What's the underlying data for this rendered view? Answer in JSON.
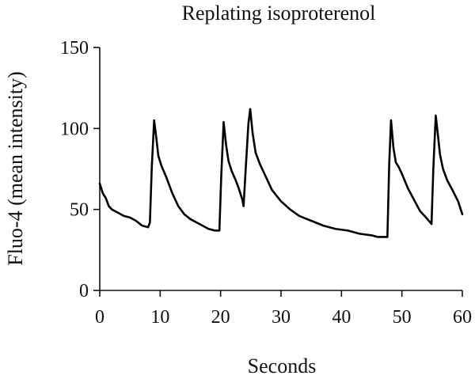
{
  "chart_data": {
    "type": "line",
    "title": "Replating isoproterenol",
    "xlabel": "Seconds",
    "ylabel": "Fluo-4 (mean intensity)",
    "xlim": [
      0,
      60
    ],
    "ylim": [
      0,
      150
    ],
    "x_ticks": [
      0,
      10,
      20,
      30,
      40,
      50,
      60
    ],
    "y_ticks": [
      0,
      50,
      100,
      150
    ],
    "x_tick_labels": [
      "0",
      "10",
      "20",
      "30",
      "40",
      "50",
      "60"
    ],
    "y_tick_labels": [
      "0",
      "50",
      "100",
      "150"
    ],
    "grid": false,
    "series": [
      {
        "x": [
          0,
          0.5,
          1,
          1.5,
          2,
          3,
          4,
          5,
          6,
          7,
          8,
          8.3,
          8.6,
          9.0,
          9.3,
          9.7,
          10.2,
          11,
          12,
          13,
          14,
          15,
          16,
          17,
          18,
          19,
          19.8,
          20.1,
          20.5,
          20.9,
          21.3,
          21.8,
          22.5,
          23,
          23.6,
          23.8,
          24.2,
          24.6,
          24.9,
          25.3,
          25.8,
          26.5,
          27.5,
          28.5,
          30,
          31.5,
          33,
          35,
          37,
          39,
          41,
          43,
          45,
          46,
          47,
          47.6,
          47.9,
          48.2,
          48.6,
          49,
          49.5,
          50,
          51,
          52,
          53,
          54,
          54.9,
          55.2,
          55.6,
          55.9,
          56.3,
          56.8,
          57.5,
          58.5,
          59.3,
          60
        ],
        "y": [
          66,
          60,
          57,
          52,
          50,
          48,
          46,
          45,
          43,
          40,
          39,
          42,
          75,
          105,
          96,
          83,
          77,
          70,
          60,
          52,
          47,
          44,
          42,
          40,
          38,
          37,
          37,
          70,
          104,
          90,
          80,
          74,
          68,
          63,
          56,
          52,
          78,
          103,
          112,
          97,
          85,
          78,
          70,
          62,
          55,
          50,
          46,
          43,
          40,
          38,
          37,
          35,
          34,
          33,
          33,
          33,
          78,
          105,
          88,
          79,
          76,
          72,
          63,
          56,
          49,
          45,
          41,
          75,
          108,
          98,
          84,
          75,
          68,
          61,
          55,
          47
        ]
      }
    ]
  }
}
